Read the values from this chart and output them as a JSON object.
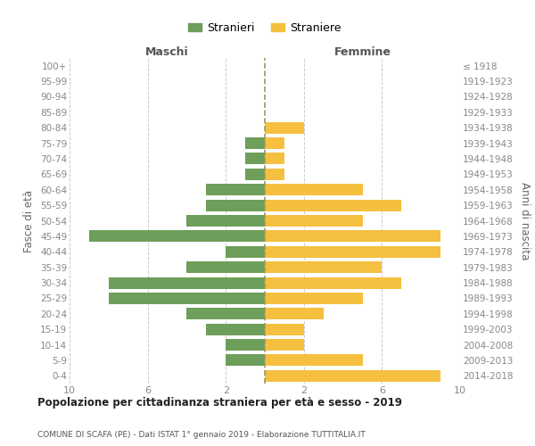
{
  "age_groups": [
    "0-4",
    "5-9",
    "10-14",
    "15-19",
    "20-24",
    "25-29",
    "30-34",
    "35-39",
    "40-44",
    "45-49",
    "50-54",
    "55-59",
    "60-64",
    "65-69",
    "70-74",
    "75-79",
    "80-84",
    "85-89",
    "90-94",
    "95-99",
    "100+"
  ],
  "birth_years": [
    "2014-2018",
    "2009-2013",
    "2004-2008",
    "1999-2003",
    "1994-1998",
    "1989-1993",
    "1984-1988",
    "1979-1983",
    "1974-1978",
    "1969-1973",
    "1964-1968",
    "1959-1963",
    "1954-1958",
    "1949-1953",
    "1944-1948",
    "1939-1943",
    "1934-1938",
    "1929-1933",
    "1924-1928",
    "1919-1923",
    "≤ 1918"
  ],
  "males": [
    0,
    2,
    2,
    3,
    4,
    8,
    8,
    4,
    2,
    9,
    4,
    3,
    3,
    1,
    1,
    1,
    0,
    0,
    0,
    0,
    0
  ],
  "females": [
    9,
    5,
    2,
    2,
    3,
    5,
    7,
    6,
    9,
    9,
    5,
    7,
    5,
    1,
    1,
    1,
    2,
    0,
    0,
    0,
    0
  ],
  "male_color": "#6d9e5a",
  "female_color": "#f5c040",
  "background_color": "#ffffff",
  "grid_color": "#cccccc",
  "title": "Popolazione per cittadinanza straniera per età e sesso - 2019",
  "subtitle": "COMUNE DI SCAFA (PE) - Dati ISTAT 1° gennaio 2019 - Elaborazione TUTTITALIA.IT",
  "xlabel_left": "Maschi",
  "xlabel_right": "Femmine",
  "ylabel_left": "Fasce di età",
  "ylabel_right": "Anni di nascita",
  "legend_male": "Stranieri",
  "legend_female": "Straniere",
  "xlim": 10,
  "bar_height": 0.75
}
